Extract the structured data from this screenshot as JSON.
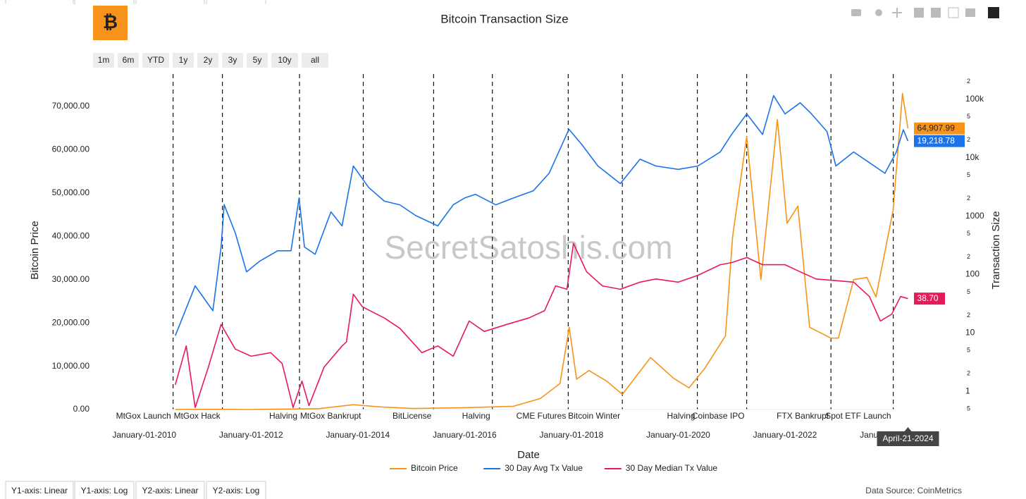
{
  "chart_data": {
    "type": "line",
    "title": "Bitcoin Transaction Size",
    "x_label": "Date",
    "y_label": "Bitcoin Price",
    "y2_label": "Transaction Size",
    "watermark": "SecretSatoshis.com",
    "source": "Data Source: CoinMetrics",
    "range_buttons": [
      "1m",
      "6m",
      "YTD",
      "1y",
      "2y",
      "3y",
      "5y",
      "10y",
      "all"
    ],
    "axis_tabs": [
      "Y1-axis: Linear",
      "Y1-axis: Log",
      "Y2-axis: Linear",
      "Y2-axis: Log"
    ],
    "hover_date": "April-21-2024",
    "xlim": [
      "2009-01-30",
      "2025-04-01"
    ],
    "xticks": [
      {
        "value": "2010-01-01",
        "label": "January-01-2010"
      },
      {
        "value": "2012-01-01",
        "label": "January-01-2012"
      },
      {
        "value": "2014-01-01",
        "label": "January-01-2014"
      },
      {
        "value": "2016-01-01",
        "label": "January-01-2016"
      },
      {
        "value": "2018-01-01",
        "label": "January-01-2018"
      },
      {
        "value": "2020-01-01",
        "label": "January-01-2020"
      },
      {
        "value": "2022-01-01",
        "label": "January-01-2022"
      },
      {
        "value": "2024-01-01",
        "label": "January-01-2024"
      }
    ],
    "ylim": [
      0,
      77500
    ],
    "yticks": [
      {
        "value": 0,
        "label": "0.00"
      },
      {
        "value": 10000,
        "label": "10,000.00"
      },
      {
        "value": 20000,
        "label": "20,000.00"
      },
      {
        "value": 30000,
        "label": "30,000.00"
      },
      {
        "value": 40000,
        "label": "40,000.00"
      },
      {
        "value": 50000,
        "label": "50,000.00"
      },
      {
        "value": 60000,
        "label": "60,000.00"
      },
      {
        "value": 70000,
        "label": "70,000.00"
      }
    ],
    "y2log": true,
    "y2lim": [
      0.49,
      270000
    ],
    "y2ticks": [
      {
        "value": 0.5,
        "label": "5"
      },
      1,
      2,
      5,
      10,
      {
        "value": 20,
        "label": "2"
      },
      {
        "value": 50,
        "label": "5"
      },
      100,
      {
        "value": 200,
        "label": "2"
      },
      {
        "value": 500,
        "label": "5"
      },
      1000,
      {
        "value": 2000,
        "label": "2"
      },
      {
        "value": 5000,
        "label": "5"
      },
      {
        "value": 10000,
        "label": "10k"
      },
      {
        "value": 20000,
        "label": "2"
      },
      {
        "value": 50000,
        "label": "5"
      },
      {
        "value": 100000,
        "label": "100k"
      },
      {
        "value": 200000,
        "label": "2"
      }
    ],
    "events": [
      {
        "date": "2010-07-17",
        "label": "MtGox Launch"
      },
      {
        "date": "2011-06-19",
        "label": "MtGox Hack"
      },
      {
        "date": "2012-11-28",
        "label": "Halving"
      },
      {
        "date": "2014-02-07",
        "label": "MtGox Bankrupt"
      },
      {
        "date": "2015-06-03",
        "label": "BitLicense"
      },
      {
        "date": "2016-07-09",
        "label": "Halving"
      },
      {
        "date": "2017-12-10",
        "label": "CME Futures"
      },
      {
        "date": "2018-12-15",
        "label": "Bitcoin Winter"
      },
      {
        "date": "2020-05-11",
        "label": "Halving"
      },
      {
        "date": "2021-04-14",
        "label": "Coinbase IPO"
      },
      {
        "date": "2022-11-11",
        "label": "FTX Bankrupt"
      },
      {
        "date": "2024-01-11",
        "label": "Spot ETF Launch"
      }
    ],
    "series": [
      {
        "name": "Bitcoin Price",
        "color": "#f7931a",
        "axis": "y",
        "end_label": "64,907.99",
        "x": [
          "2010-08-01",
          "2011-06-10",
          "2012-01-01",
          "2013-04-10",
          "2013-12-01",
          "2014-06-01",
          "2015-01-15",
          "2016-01-01",
          "2016-12-01",
          "2017-06-01",
          "2017-10-15",
          "2017-12-17",
          "2018-02-05",
          "2018-05-01",
          "2018-09-01",
          "2018-12-15",
          "2019-06-26",
          "2019-12-01",
          "2020-03-15",
          "2020-07-01",
          "2020-11-20",
          "2021-01-08",
          "2021-04-14",
          "2021-07-20",
          "2021-11-10",
          "2022-01-15",
          "2022-03-30",
          "2022-06-18",
          "2022-11-10",
          "2023-01-01",
          "2023-04-15",
          "2023-07-15",
          "2023-09-15",
          "2024-01-10",
          "2024-03-14",
          "2024-04-21"
        ],
        "values": [
          0.07,
          25,
          5,
          200,
          1100,
          600,
          220,
          430,
          750,
          2500,
          6000,
          19000,
          7000,
          9000,
          6500,
          3500,
          12000,
          7200,
          5000,
          9500,
          17000,
          40000,
          63000,
          30000,
          67000,
          43000,
          47000,
          19000,
          16500,
          16500,
          30000,
          30500,
          26000,
          46000,
          73000,
          64907.99
        ]
      },
      {
        "name": "30 Day Avg Tx Value",
        "color": "#1a73e8",
        "axis": "y2",
        "end_label": "19,218.78",
        "x": [
          "2010-08-01",
          "2010-12-15",
          "2011-04-15",
          "2011-06-10",
          "2011-07-01",
          "2011-09-15",
          "2011-12-01",
          "2012-03-01",
          "2012-07-01",
          "2012-10-01",
          "2012-11-25",
          "2013-01-01",
          "2013-03-15",
          "2013-07-01",
          "2013-09-15",
          "2013-12-01",
          "2014-03-15",
          "2014-07-01",
          "2014-10-15",
          "2015-02-01",
          "2015-07-01",
          "2015-10-15",
          "2016-01-01",
          "2016-03-15",
          "2016-08-01",
          "2016-12-01",
          "2017-04-15",
          "2017-08-01",
          "2017-12-15",
          "2018-03-15",
          "2018-07-01",
          "2018-12-01",
          "2019-04-15",
          "2019-08-01",
          "2020-01-01",
          "2020-05-15",
          "2020-10-15",
          "2021-01-01",
          "2021-04-15",
          "2021-08-01",
          "2021-10-15",
          "2022-01-01",
          "2022-04-15",
          "2022-07-01",
          "2022-10-15",
          "2022-12-15",
          "2023-04-15",
          "2023-08-01",
          "2023-11-15",
          "2024-02-01",
          "2024-03-20",
          "2024-04-21"
        ],
        "values": [
          9,
          64,
          24,
          295,
          1570,
          515,
          111,
          170,
          255,
          255,
          2040,
          295,
          222,
          1180,
          680,
          7200,
          3100,
          1800,
          1560,
          1020,
          680,
          1560,
          2040,
          2360,
          1560,
          2040,
          2700,
          5400,
          30600,
          16500,
          7200,
          3600,
          9400,
          7200,
          6300,
          7200,
          12500,
          25000,
          56000,
          25000,
          115000,
          56000,
          87000,
          56000,
          28000,
          7200,
          12500,
          8200,
          5400,
          12500,
          30000,
          19218.78
        ]
      },
      {
        "name": "30 Day Median Tx Value",
        "color": "#e8195a",
        "axis": "y2",
        "end_label": "38.70",
        "x": [
          "2010-08-01",
          "2010-10-15",
          "2010-12-15",
          "2011-03-15",
          "2011-06-10",
          "2011-09-15",
          "2012-01-01",
          "2012-05-15",
          "2012-08-01",
          "2012-10-15",
          "2012-12-15",
          "2013-02-01",
          "2013-05-15",
          "2013-09-15",
          "2013-10-15",
          "2013-12-01",
          "2014-02-01",
          "2014-07-01",
          "2014-10-15",
          "2015-03-15",
          "2015-07-01",
          "2015-10-15",
          "2016-02-01",
          "2016-05-15",
          "2016-10-15",
          "2017-03-15",
          "2017-07-01",
          "2017-09-15",
          "2017-12-01",
          "2018-01-15",
          "2018-04-15",
          "2018-08-01",
          "2018-12-01",
          "2019-04-15",
          "2019-08-01",
          "2020-01-01",
          "2020-05-15",
          "2020-10-15",
          "2021-01-01",
          "2021-04-15",
          "2021-08-01",
          "2022-01-01",
          "2022-04-15",
          "2022-08-01",
          "2023-01-01",
          "2023-04-15",
          "2023-08-01",
          "2023-10-15",
          "2024-01-01",
          "2024-03-01",
          "2024-04-21"
        ],
        "values": [
          1.3,
          6,
          0.53,
          2.6,
          14,
          5.3,
          4,
          4.6,
          3,
          0.53,
          1.5,
          0.57,
          2.6,
          6,
          7,
          46,
          28,
          18,
          12,
          4.6,
          6,
          4,
          16,
          10.6,
          14,
          18,
          24,
          64,
          56,
          340,
          111,
          64,
          56,
          74,
          84,
          74,
          97,
          147,
          160,
          195,
          147,
          147,
          111,
          84,
          78,
          74,
          42,
          16,
          21,
          42,
          38.7
        ]
      }
    ]
  }
}
